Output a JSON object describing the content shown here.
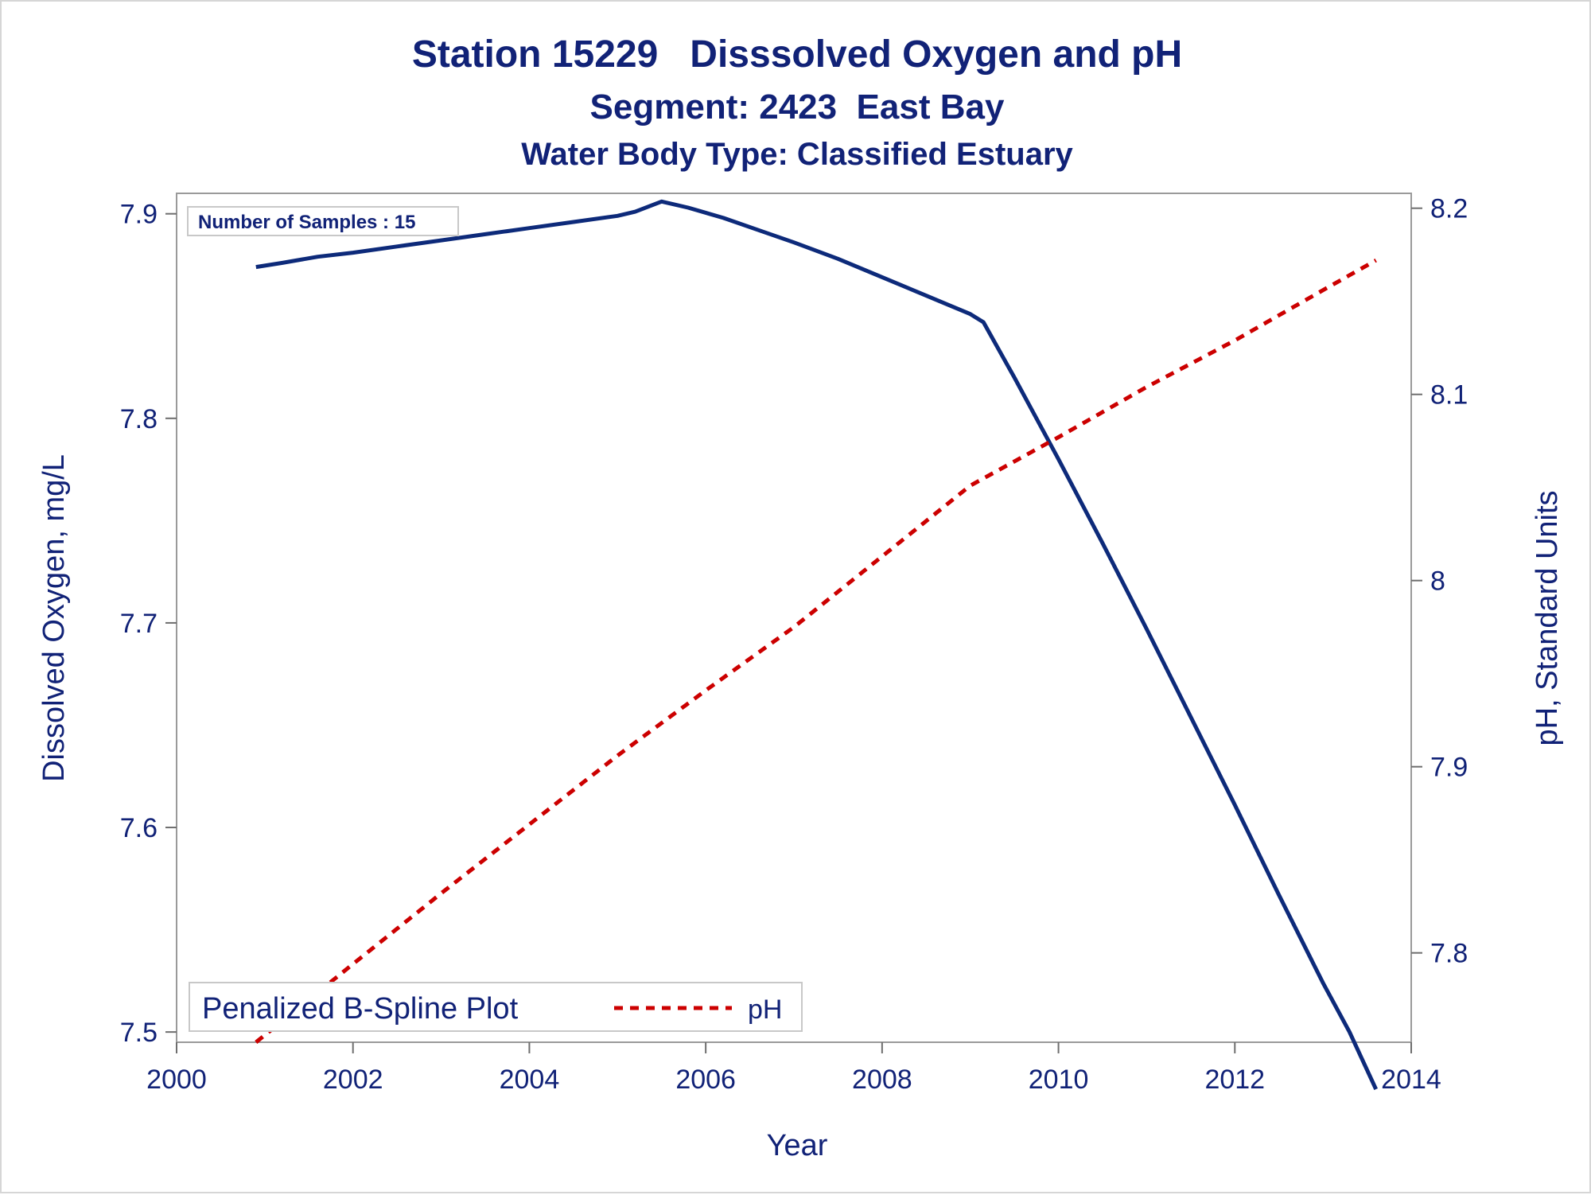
{
  "titles": {
    "line1": "Station 15229   Disssolved Oxygen and pH",
    "line2": "Segment: 2423  East Bay",
    "line3": "Water Body Type: Classified Estuary"
  },
  "inset_text": "Number of Samples : 15",
  "legend": {
    "title": "Penalized B-Spline Plot",
    "entries": [
      {
        "label": "pH",
        "color": "#cc0000",
        "style": "dashed"
      }
    ]
  },
  "chart_data": {
    "type": "line",
    "xlabel": "Year",
    "ylabel": "Dissolved Oxygen, mg/L",
    "y2label": "pH, Standard Units",
    "xlim": [
      2000,
      2014
    ],
    "ylim": [
      7.495,
      7.91
    ],
    "y2lim": [
      7.752,
      8.208
    ],
    "xticks": [
      "2000",
      "2002",
      "2004",
      "2006",
      "2008",
      "2010",
      "2012",
      "2014"
    ],
    "yticks": [
      "7.5",
      "7.6",
      "7.7",
      "7.8",
      "7.9"
    ],
    "y2ticks": [
      "7.8",
      "7.9",
      "8",
      "8.1",
      "8.2"
    ],
    "series": [
      {
        "axis": "left",
        "color": "#0d2a7a",
        "style": "solid",
        "x": [
          2000.9,
          2001.2,
          2001.6,
          2002.0,
          2002.5,
          2003.0,
          2003.5,
          2004.0,
          2004.5,
          2005.0,
          2005.2,
          2005.5,
          2005.8,
          2006.2,
          2006.6,
          2007.0,
          2007.5,
          2008.0,
          2008.5,
          2009.0,
          2009.15,
          2009.5,
          2010.0,
          2010.5,
          2011.0,
          2011.5,
          2012.0,
          2012.5,
          2013.0,
          2013.3,
          2013.6
        ],
        "y": [
          7.874,
          7.876,
          7.879,
          7.881,
          7.884,
          7.887,
          7.89,
          7.893,
          7.896,
          7.899,
          7.901,
          7.906,
          7.903,
          7.898,
          7.892,
          7.886,
          7.878,
          7.869,
          7.86,
          7.851,
          7.847,
          7.82,
          7.78,
          7.739,
          7.697,
          7.654,
          7.611,
          7.567,
          7.524,
          7.5,
          7.472
        ]
      },
      {
        "name": "pH",
        "axis": "right",
        "color": "#cc0000",
        "style": "dashed",
        "x": [
          2000.9,
          2002.0,
          2003.0,
          2004.0,
          2005.0,
          2006.0,
          2007.0,
          2008.0,
          2009.0,
          2010.0,
          2011.0,
          2012.0,
          2013.0,
          2013.6
        ],
        "y": [
          7.752,
          7.794,
          7.832,
          7.869,
          7.906,
          7.941,
          7.975,
          8.013,
          8.051,
          8.077,
          8.104,
          8.129,
          8.156,
          8.172
        ]
      }
    ]
  }
}
